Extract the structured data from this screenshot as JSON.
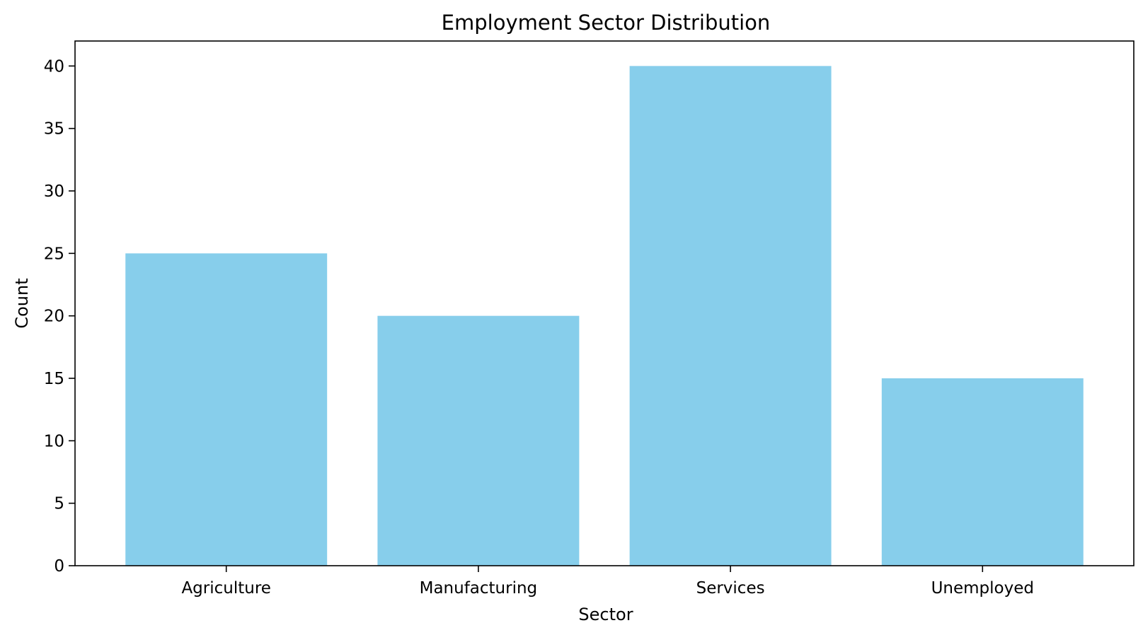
{
  "chart_data": {
    "type": "bar",
    "title": "Employment Sector Distribution",
    "xlabel": "Sector",
    "ylabel": "Count",
    "categories": [
      "Agriculture",
      "Manufacturing",
      "Services",
      "Unemployed"
    ],
    "values": [
      25,
      20,
      40,
      15
    ],
    "ylim": [
      0,
      42
    ],
    "yticks": [
      0,
      5,
      10,
      15,
      20,
      25,
      30,
      35,
      40
    ],
    "grid": false,
    "legend": "none",
    "bar_color": "#87CEEB"
  }
}
